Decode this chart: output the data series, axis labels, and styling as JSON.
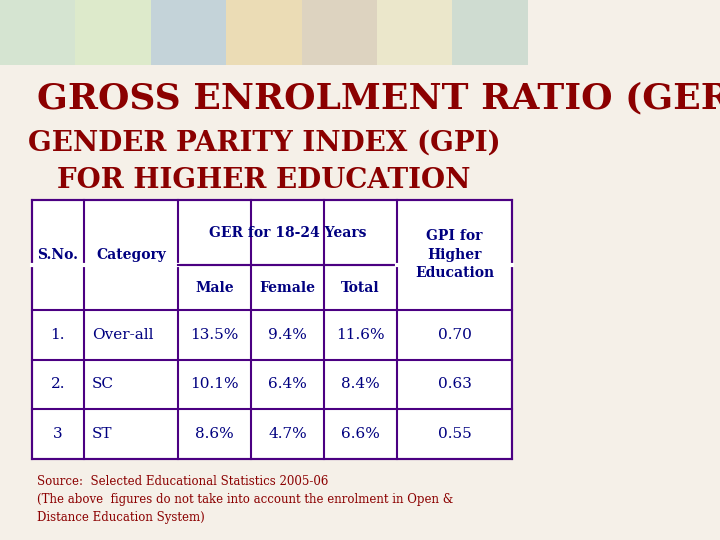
{
  "title_line1": "GROSS ENROLMENT RATIO (GER)",
  "title_line2": "GENDER PARITY INDEX (GPI)",
  "title_line3": "FOR HIGHER EDUCATION",
  "title_color": "#8B0000",
  "title_line1_fontsize": 26,
  "title_line23_fontsize": 20,
  "data_rows": [
    [
      "1.",
      "Over-all",
      "13.5%",
      "9.4%",
      "11.6%",
      "0.70"
    ],
    [
      "2.",
      "SC",
      "10.1%",
      "6.4%",
      "8.4%",
      "0.63"
    ],
    [
      "3",
      "ST",
      "8.6%",
      "4.7%",
      "6.6%",
      "0.55"
    ]
  ],
  "table_header_color": "#000080",
  "table_data_color": "#000080",
  "table_border_color": "#4B0082",
  "source_text": "Source:  Selected Educational Statistics 2005-06\n(The above  figures do not take into account the enrolment in Open &\nDistance Education System)",
  "source_color": "#8B0000",
  "bg_color": "#F5F0E8"
}
